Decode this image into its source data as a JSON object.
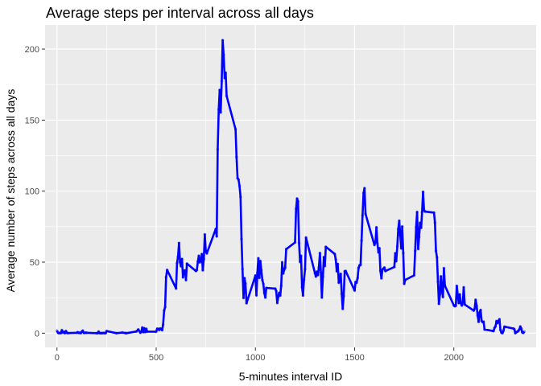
{
  "chart_data": {
    "type": "line",
    "title": "Average steps per interval across all days",
    "xlabel": "5-minutes interval ID",
    "ylabel": "Average number of steps across all days",
    "xlim": [
      -60,
      2415
    ],
    "ylim": [
      -10,
      217
    ],
    "x_ticks": [
      0,
      500,
      1000,
      1500,
      2000
    ],
    "y_ticks": [
      0,
      50,
      100,
      150,
      200
    ],
    "x_tick_labels": [
      "0",
      "500",
      "1000",
      "1500",
      "2000"
    ],
    "y_tick_labels": [
      "0",
      "50",
      "100",
      "150",
      "200"
    ],
    "grid": true,
    "panel_background": "#ebebeb",
    "grid_color": "#ffffff",
    "line_color": "#0000ff",
    "points": [
      [
        0,
        1.7
      ],
      [
        5,
        0.3
      ],
      [
        10,
        0.1
      ],
      [
        15,
        0.2
      ],
      [
        20,
        0.1
      ],
      [
        25,
        2.1
      ],
      [
        30,
        0.5
      ],
      [
        35,
        0.9
      ],
      [
        40,
        0
      ],
      [
        45,
        1.5
      ],
      [
        50,
        0.3
      ],
      [
        55,
        0.1
      ],
      [
        100,
        0.3
      ],
      [
        105,
        0.7
      ],
      [
        110,
        0.2
      ],
      [
        115,
        0.3
      ],
      [
        120,
        0
      ],
      [
        125,
        1.1
      ],
      [
        130,
        1.8
      ],
      [
        135,
        0.2
      ],
      [
        140,
        0.2
      ],
      [
        145,
        0.4
      ],
      [
        150,
        0.3
      ],
      [
        200,
        0
      ],
      [
        205,
        0
      ],
      [
        210,
        1.1
      ],
      [
        215,
        0
      ],
      [
        220,
        0
      ],
      [
        225,
        0.1
      ],
      [
        230,
        0
      ],
      [
        235,
        0.2
      ],
      [
        240,
        0
      ],
      [
        245,
        0
      ],
      [
        250,
        1.5
      ],
      [
        300,
        0
      ],
      [
        330,
        0.5
      ],
      [
        345,
        0.1
      ],
      [
        350,
        0
      ],
      [
        400,
        1.2
      ],
      [
        410,
        2.6
      ],
      [
        420,
        0.3
      ],
      [
        425,
        1
      ],
      [
        430,
        4
      ],
      [
        435,
        0.7
      ],
      [
        440,
        3.5
      ],
      [
        445,
        0.8
      ],
      [
        450,
        3.1
      ],
      [
        455,
        1.1
      ],
      [
        500,
        1.1
      ],
      [
        505,
        3.2
      ],
      [
        510,
        3
      ],
      [
        515,
        2.2
      ],
      [
        520,
        3.3
      ],
      [
        525,
        3
      ],
      [
        530,
        2.1
      ],
      [
        535,
        6.1
      ],
      [
        540,
        16
      ],
      [
        545,
        18.3
      ],
      [
        550,
        39.4
      ],
      [
        555,
        44.5
      ],
      [
        600,
        31.5
      ],
      [
        605,
        49.3
      ],
      [
        610,
        53.8
      ],
      [
        615,
        63.5
      ],
      [
        620,
        50
      ],
      [
        625,
        47.1
      ],
      [
        630,
        52.2
      ],
      [
        635,
        39.3
      ],
      [
        640,
        44
      ],
      [
        645,
        44.2
      ],
      [
        650,
        37.4
      ],
      [
        655,
        49
      ],
      [
        700,
        43.8
      ],
      [
        705,
        44.4
      ],
      [
        710,
        50.5
      ],
      [
        715,
        54.5
      ],
      [
        720,
        49.9
      ],
      [
        725,
        50.9
      ],
      [
        730,
        55.7
      ],
      [
        735,
        44.3
      ],
      [
        740,
        52.3
      ],
      [
        745,
        69.5
      ],
      [
        750,
        57.8
      ],
      [
        755,
        56.2
      ],
      [
        800,
        73.4
      ],
      [
        805,
        68.2
      ],
      [
        810,
        129.4
      ],
      [
        815,
        157.5
      ],
      [
        820,
        171.2
      ],
      [
        825,
        155.4
      ],
      [
        830,
        177.3
      ],
      [
        835,
        206.2
      ],
      [
        840,
        195.9
      ],
      [
        845,
        179.6
      ],
      [
        850,
        183.4
      ],
      [
        855,
        167
      ],
      [
        900,
        143.5
      ],
      [
        905,
        124
      ],
      [
        910,
        109.1
      ],
      [
        915,
        108.1
      ],
      [
        920,
        103.7
      ],
      [
        925,
        95.9
      ],
      [
        930,
        66.2
      ],
      [
        935,
        45.2
      ],
      [
        940,
        24.8
      ],
      [
        945,
        38.8
      ],
      [
        950,
        35
      ],
      [
        955,
        21.1
      ],
      [
        1000,
        40.6
      ],
      [
        1005,
        26.6
      ],
      [
        1010,
        42.4
      ],
      [
        1015,
        52.7
      ],
      [
        1020,
        38.9
      ],
      [
        1025,
        50.8
      ],
      [
        1030,
        44.3
      ],
      [
        1035,
        37.4
      ],
      [
        1040,
        34.7
      ],
      [
        1045,
        28.3
      ],
      [
        1050,
        25.1
      ],
      [
        1055,
        31.9
      ],
      [
        1100,
        31.4
      ],
      [
        1105,
        29.7
      ],
      [
        1110,
        21.3
      ],
      [
        1115,
        25.5
      ],
      [
        1120,
        28.4
      ],
      [
        1125,
        26.5
      ],
      [
        1130,
        33.4
      ],
      [
        1135,
        49.9
      ],
      [
        1140,
        42
      ],
      [
        1145,
        44.6
      ],
      [
        1150,
        46
      ],
      [
        1155,
        59.2
      ],
      [
        1200,
        63.9
      ],
      [
        1205,
        87.6
      ],
      [
        1210,
        94.8
      ],
      [
        1215,
        92.8
      ],
      [
        1220,
        63.4
      ],
      [
        1225,
        50.2
      ],
      [
        1230,
        54.5
      ],
      [
        1235,
        32.4
      ],
      [
        1240,
        26.5
      ],
      [
        1245,
        37.7
      ],
      [
        1250,
        45.1
      ],
      [
        1255,
        67.3
      ],
      [
        1300,
        42.3
      ],
      [
        1305,
        39.9
      ],
      [
        1310,
        43.3
      ],
      [
        1315,
        40.9
      ],
      [
        1320,
        46.2
      ],
      [
        1325,
        56.4
      ],
      [
        1330,
        42.8
      ],
      [
        1335,
        25.1
      ],
      [
        1340,
        39.9
      ],
      [
        1345,
        53.5
      ],
      [
        1350,
        47.3
      ],
      [
        1355,
        60.8
      ],
      [
        1400,
        55.8
      ],
      [
        1405,
        51.9
      ],
      [
        1410,
        43.6
      ],
      [
        1415,
        48.7
      ],
      [
        1420,
        35.5
      ],
      [
        1425,
        37.5
      ],
      [
        1430,
        41.8
      ],
      [
        1435,
        27.5
      ],
      [
        1440,
        17.1
      ],
      [
        1445,
        26.1
      ],
      [
        1450,
        43.6
      ],
      [
        1455,
        43.8
      ],
      [
        1500,
        30
      ],
      [
        1505,
        36.1
      ],
      [
        1510,
        35.5
      ],
      [
        1515,
        38.8
      ],
      [
        1520,
        46
      ],
      [
        1525,
        47.8
      ],
      [
        1530,
        48.1
      ],
      [
        1535,
        65.3
      ],
      [
        1540,
        82.9
      ],
      [
        1545,
        98.7
      ],
      [
        1550,
        102.1
      ],
      [
        1555,
        84
      ],
      [
        1600,
        62.1
      ],
      [
        1605,
        64.1
      ],
      [
        1610,
        74.5
      ],
      [
        1615,
        63.2
      ],
      [
        1620,
        56.9
      ],
      [
        1625,
        59.8
      ],
      [
        1630,
        43.9
      ],
      [
        1635,
        38.6
      ],
      [
        1640,
        44.7
      ],
      [
        1645,
        45.5
      ],
      [
        1650,
        46.2
      ],
      [
        1655,
        43.7
      ],
      [
        1700,
        46.6
      ],
      [
        1705,
        56.3
      ],
      [
        1710,
        50.7
      ],
      [
        1715,
        61.2
      ],
      [
        1720,
        73.4
      ],
      [
        1725,
        79.1
      ],
      [
        1730,
        68.9
      ],
      [
        1735,
        59.7
      ],
      [
        1740,
        75.1
      ],
      [
        1745,
        56.5
      ],
      [
        1750,
        34.8
      ],
      [
        1755,
        37.5
      ],
      [
        1800,
        40.7
      ],
      [
        1805,
        58
      ],
      [
        1810,
        74.7
      ],
      [
        1815,
        85.3
      ],
      [
        1820,
        59.3
      ],
      [
        1825,
        67.8
      ],
      [
        1830,
        77.7
      ],
      [
        1835,
        74.2
      ],
      [
        1840,
        85.3
      ],
      [
        1845,
        99.5
      ],
      [
        1850,
        86.6
      ],
      [
        1855,
        85.6
      ],
      [
        1900,
        84.9
      ],
      [
        1905,
        77.8
      ],
      [
        1910,
        58
      ],
      [
        1915,
        53.4
      ],
      [
        1920,
        36.3
      ],
      [
        1925,
        20.7
      ],
      [
        1930,
        27.4
      ],
      [
        1935,
        40
      ],
      [
        1940,
        30.2
      ],
      [
        1945,
        25.5
      ],
      [
        1950,
        45.7
      ],
      [
        1955,
        33.5
      ],
      [
        2000,
        19.6
      ],
      [
        2005,
        19
      ],
      [
        2010,
        19.3
      ],
      [
        2015,
        33.3
      ],
      [
        2020,
        26.8
      ],
      [
        2025,
        21.2
      ],
      [
        2030,
        27.3
      ],
      [
        2035,
        21.3
      ],
      [
        2040,
        19.5
      ],
      [
        2045,
        21.3
      ],
      [
        2050,
        32.3
      ],
      [
        2055,
        20.2
      ],
      [
        2100,
        15.9
      ],
      [
        2105,
        17.2
      ],
      [
        2110,
        23.5
      ],
      [
        2115,
        19.2
      ],
      [
        2120,
        12.5
      ],
      [
        2125,
        8
      ],
      [
        2130,
        14.7
      ],
      [
        2135,
        16.3
      ],
      [
        2140,
        8.7
      ],
      [
        2145,
        7.8
      ],
      [
        2150,
        8.1
      ],
      [
        2155,
        2.6
      ],
      [
        2200,
        1.5
      ],
      [
        2205,
        3.7
      ],
      [
        2210,
        4.8
      ],
      [
        2215,
        8.5
      ],
      [
        2220,
        7.1
      ],
      [
        2225,
        8.7
      ],
      [
        2230,
        9.8
      ],
      [
        2235,
        2.2
      ],
      [
        2240,
        0.3
      ],
      [
        2245,
        0.1
      ],
      [
        2250,
        1.6
      ],
      [
        2255,
        4.6
      ],
      [
        2300,
        3.3
      ],
      [
        2305,
        2.8
      ],
      [
        2310,
        0
      ],
      [
        2315,
        0.8
      ],
      [
        2320,
        1
      ],
      [
        2325,
        1.6
      ],
      [
        2330,
        2.6
      ],
      [
        2335,
        4.7
      ],
      [
        2340,
        3.3
      ],
      [
        2345,
        0.6
      ],
      [
        2350,
        0.2
      ],
      [
        2355,
        1.1
      ]
    ]
  }
}
